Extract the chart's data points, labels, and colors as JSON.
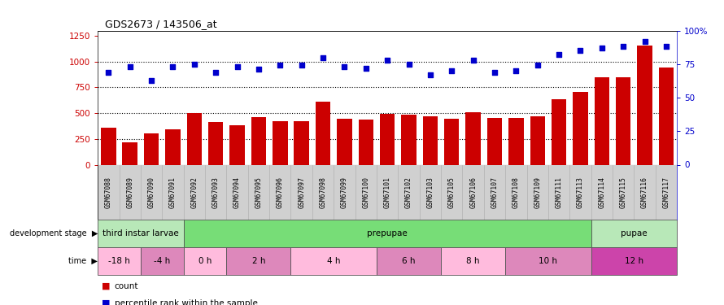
{
  "title": "GDS2673 / 143506_at",
  "samples": [
    "GSM67088",
    "GSM67089",
    "GSM67090",
    "GSM67091",
    "GSM67092",
    "GSM67093",
    "GSM67094",
    "GSM67095",
    "GSM67096",
    "GSM67097",
    "GSM67098",
    "GSM67099",
    "GSM67100",
    "GSM67101",
    "GSM67102",
    "GSM67103",
    "GSM67105",
    "GSM67106",
    "GSM67107",
    "GSM67108",
    "GSM67109",
    "GSM67111",
    "GSM67113",
    "GSM67114",
    "GSM67115",
    "GSM67116",
    "GSM67117"
  ],
  "counts": [
    355,
    215,
    305,
    340,
    500,
    415,
    385,
    460,
    425,
    425,
    610,
    445,
    438,
    490,
    488,
    465,
    442,
    508,
    452,
    452,
    468,
    638,
    708,
    850,
    850,
    1155,
    938
  ],
  "percentiles": [
    69,
    73,
    63,
    73,
    75,
    69,
    73,
    71,
    74,
    74,
    80,
    73,
    72,
    78,
    75,
    67,
    70,
    78,
    69,
    70,
    74,
    82,
    85,
    87,
    88,
    92,
    88
  ],
  "ylim_left": [
    0,
    1300
  ],
  "ylim_right": [
    0,
    100
  ],
  "yticks_left": [
    0,
    250,
    500,
    750,
    1000,
    1250
  ],
  "yticks_right": [
    0,
    25,
    50,
    75,
    100
  ],
  "ytick_labels_right": [
    "0",
    "25",
    "50",
    "75",
    "100%"
  ],
  "bar_color": "#cc0000",
  "scatter_color": "#0000cc",
  "dotted_lines": [
    250,
    500,
    750,
    1000
  ],
  "dev_stages": [
    {
      "label": "third instar larvae",
      "start": 0,
      "end": 4,
      "color": "#b8e8b8"
    },
    {
      "label": "prepupae",
      "start": 4,
      "end": 23,
      "color": "#77dd77"
    },
    {
      "label": "pupae",
      "start": 23,
      "end": 27,
      "color": "#b8e8b8"
    }
  ],
  "time_groups": [
    {
      "label": "-18 h",
      "start": 0,
      "end": 2,
      "color": "#ffbbdd"
    },
    {
      "label": "-4 h",
      "start": 2,
      "end": 4,
      "color": "#dd88bb"
    },
    {
      "label": "0 h",
      "start": 4,
      "end": 6,
      "color": "#ffbbdd"
    },
    {
      "label": "2 h",
      "start": 6,
      "end": 9,
      "color": "#dd88bb"
    },
    {
      "label": "4 h",
      "start": 9,
      "end": 13,
      "color": "#ffbbdd"
    },
    {
      "label": "6 h",
      "start": 13,
      "end": 16,
      "color": "#dd88bb"
    },
    {
      "label": "8 h",
      "start": 16,
      "end": 19,
      "color": "#ffbbdd"
    },
    {
      "label": "10 h",
      "start": 19,
      "end": 23,
      "color": "#dd88bb"
    },
    {
      "label": "12 h",
      "start": 23,
      "end": 27,
      "color": "#cc44aa"
    }
  ],
  "legend_items": [
    {
      "label": "count",
      "color": "#cc0000"
    },
    {
      "label": "percentile rank within the sample",
      "color": "#0000cc"
    }
  ]
}
